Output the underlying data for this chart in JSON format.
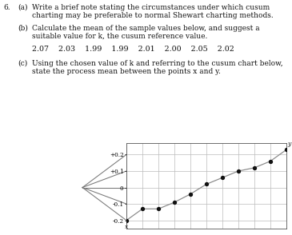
{
  "title_number": "6.",
  "part_a_label": "(a)",
  "part_a_text_line1": "Write a brief note stating the circumstances under which cusum",
  "part_a_text_line2": "charting may be preferable to normal Shewart charting methods.",
  "part_b_label": "(b)",
  "part_b_text_line1": "Calculate the mean of the sample values below, and suggest a",
  "part_b_text_line2": "suitable value for k, the cusum reference value.",
  "sample_values": "2.07    2.03    1.99    1.99    2.01    2.00    2.05    2.02",
  "part_c_label": "(c)",
  "part_c_text_line1": "Using the chosen value of k and referring to the cusum chart below,",
  "part_c_text_line2": "state the process mean between the points x and y.",
  "ytick_labels": [
    "-0.2",
    "-0.1",
    "0",
    "+0.1",
    "+0.2"
  ],
  "ytick_vals": [
    -0.2,
    -0.1,
    0.0,
    0.1,
    0.2
  ],
  "num_grid_cols": 10,
  "cusum_points_x": [
    0,
    1,
    2,
    3,
    4,
    5,
    6,
    7,
    8,
    9,
    10
  ],
  "cusum_points_y": [
    -0.2,
    -0.13,
    -0.13,
    -0.09,
    -0.04,
    0.02,
    0.06,
    0.1,
    0.12,
    0.16,
    0.23
  ],
  "fan_lines_y_ends": [
    0.2,
    0.1,
    0.0,
    -0.1,
    -0.2
  ],
  "background_color": "#ffffff",
  "grid_color": "#bbbbbb",
  "line_color": "#888888",
  "dot_color": "#111111",
  "text_color": "#111111",
  "font_size_body": 6.5,
  "font_size_sample": 6.8,
  "ylim": [
    -0.25,
    0.27
  ]
}
